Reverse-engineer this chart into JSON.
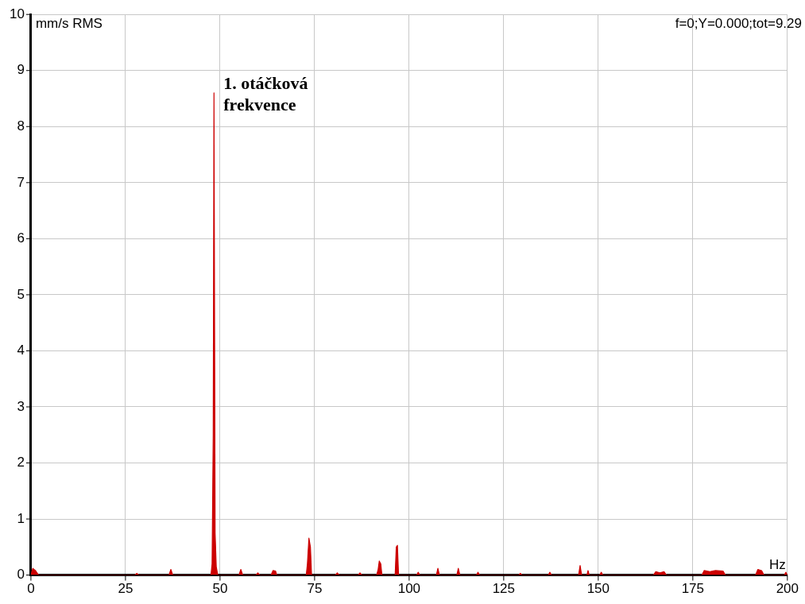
{
  "chart_data": {
    "type": "area",
    "ylabel": "mm/s RMS",
    "xlabel": "Hz",
    "color": "#cc0000",
    "marker": "none",
    "grid": true,
    "legend": false,
    "xlim": [
      0,
      200
    ],
    "xticks": [
      0,
      25,
      50,
      75,
      100,
      125,
      150,
      175,
      200
    ],
    "ylim": [
      0,
      10
    ],
    "yticks": [
      0,
      1,
      2,
      3,
      4,
      5,
      6,
      7,
      8,
      9,
      10
    ],
    "x": [
      0,
      0.5,
      1.2,
      2,
      27.5,
      28,
      28.5,
      36.5,
      37,
      37.5,
      47.6,
      47.9,
      48.2,
      48.4,
      48.7,
      49.0,
      49.4,
      55,
      55.5,
      56,
      59.5,
      60,
      60.5,
      63.5,
      64,
      64.7,
      65,
      72.8,
      73.1,
      73.5,
      73.9,
      74.2,
      80.5,
      81,
      81.5,
      86.5,
      87,
      87.5,
      91.4,
      91.8,
      92.1,
      92.5,
      92.8,
      96.3,
      96.6,
      96.9,
      97.2,
      102,
      102.4,
      102.8,
      107.2,
      107.6,
      108,
      112.6,
      113,
      113.4,
      117.8,
      118.2,
      118.6,
      129,
      129.4,
      129.8,
      136.8,
      137.2,
      137.6,
      144.8,
      145.2,
      145.6,
      147,
      147.3,
      147.6,
      150.4,
      150.8,
      151.2,
      164.6,
      165.2,
      166.3,
      167.4,
      168,
      177.4,
      178,
      179.5,
      181,
      183,
      183.6,
      191.6,
      192.2,
      193.2,
      193.8,
      199.2,
      199.6,
      200
    ],
    "values": [
      0,
      0.12,
      0.08,
      0,
      0,
      0.03,
      0,
      0,
      0.1,
      0,
      0,
      0.2,
      2.5,
      8.6,
      0.75,
      0.15,
      0,
      0,
      0.1,
      0,
      0,
      0.04,
      0,
      0,
      0.08,
      0.07,
      0,
      0,
      0.2,
      0.66,
      0.5,
      0,
      0,
      0.04,
      0,
      0,
      0.04,
      0,
      0,
      0.1,
      0.25,
      0.2,
      0,
      0,
      0.5,
      0.53,
      0,
      0,
      0.05,
      0,
      0,
      0.12,
      0,
      0,
      0.12,
      0,
      0,
      0.05,
      0,
      0,
      0.03,
      0,
      0,
      0.05,
      0,
      0,
      0.17,
      0,
      0,
      0.08,
      0,
      0,
      0.05,
      0,
      0,
      0.06,
      0.04,
      0.06,
      0,
      0,
      0.08,
      0.06,
      0.08,
      0.07,
      0,
      0,
      0.1,
      0.08,
      0,
      0,
      0.05,
      0
    ],
    "annotations": [
      {
        "text": "1. otáčková frekvence",
        "x": 48.4,
        "y": 8.6
      },
      "f=0;Y=0.000;tot=9.29"
    ]
  }
}
